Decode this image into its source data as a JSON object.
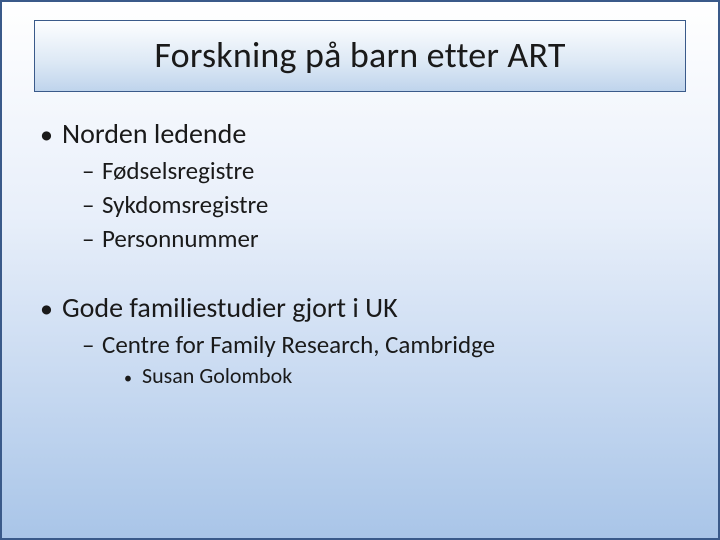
{
  "title": "Forskning på barn etter ART",
  "bullets": {
    "b1": "Norden ledende",
    "b1_1": "Fødselsregistre",
    "b1_2": "Sykdomsregistre",
    "b1_3": "Personnummer",
    "b2": "Gode familiestudier gjort i UK",
    "b2_1": "Centre for Family Research, Cambridge",
    "b2_1_1": "Susan Golombok"
  },
  "markers": {
    "l1": "•",
    "l2": "–",
    "l3": "•"
  },
  "colors": {
    "border": "#3a5a8a",
    "bg_top": "#ffffff",
    "bg_bottom": "#a9c5e8",
    "title_bg_top": "#fdfeff",
    "title_bg_bottom": "#bfd4ec",
    "text": "#1a1a1a"
  }
}
